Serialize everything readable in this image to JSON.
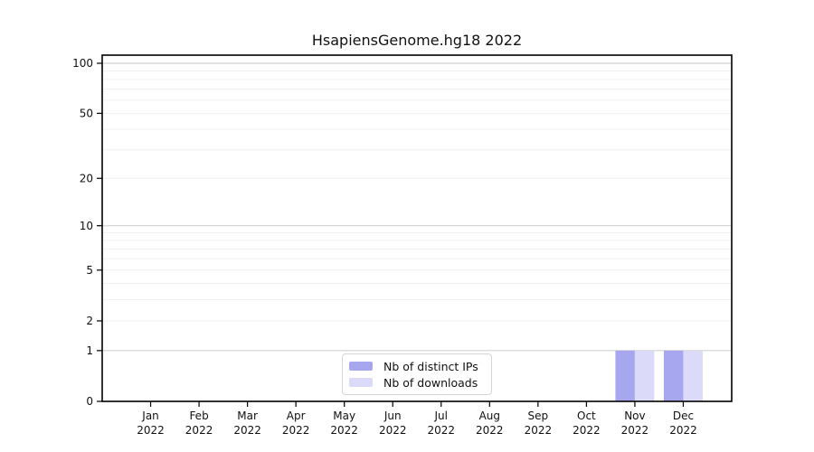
{
  "title": "HsapiensGenome.hg18 2022",
  "colors": {
    "distinct_ips": "#a7a7f0",
    "downloads": "#dbdbf9",
    "grid_major": "#d2d2d2",
    "grid_minor": "#f1f1f1",
    "axis": "#000000",
    "text": "#111111",
    "background": "#ffffff"
  },
  "legend": {
    "items": [
      {
        "label": "Nb of distinct IPs",
        "color_key": "distinct_ips"
      },
      {
        "label": "Nb of downloads",
        "color_key": "downloads"
      }
    ]
  },
  "chart_data": {
    "type": "bar",
    "title": "HsapiensGenome.hg18 2022",
    "categories": [
      "Jan 2022",
      "Feb 2022",
      "Mar 2022",
      "Apr 2022",
      "May 2022",
      "Jun 2022",
      "Jul 2022",
      "Aug 2022",
      "Sep 2022",
      "Oct 2022",
      "Nov 2022",
      "Dec 2022"
    ],
    "series": [
      {
        "name": "Nb of distinct IPs",
        "color_key": "distinct_ips",
        "values": [
          0,
          0,
          0,
          0,
          0,
          0,
          0,
          0,
          0,
          0,
          1,
          1
        ]
      },
      {
        "name": "Nb of downloads",
        "color_key": "downloads",
        "values": [
          0,
          0,
          0,
          0,
          0,
          0,
          0,
          0,
          0,
          0,
          1,
          1
        ]
      }
    ],
    "yscale": "log1p",
    "ylim": [
      0,
      112
    ],
    "yticks": [
      100,
      50,
      20,
      10,
      5,
      2,
      1,
      0
    ],
    "major_gridlines": [
      1,
      10,
      100
    ],
    "minor_gridlines": [
      2,
      3,
      4,
      5,
      6,
      7,
      8,
      9,
      20,
      30,
      40,
      50,
      60,
      70,
      80,
      90
    ],
    "grid": "horizontal",
    "legend_position": "bottom-center-inside",
    "xlabel": "",
    "ylabel": ""
  }
}
